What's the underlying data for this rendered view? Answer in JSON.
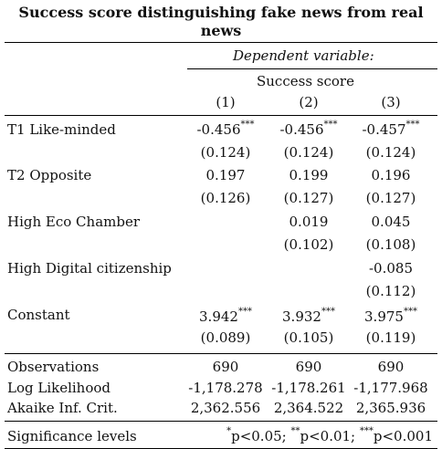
{
  "title": "Success score distinguishing fake news from real news",
  "header": {
    "dep_var_caption": "Dependent variable:",
    "dep_var_name": "Success score",
    "columns": [
      "(1)",
      "(2)",
      "(3)"
    ]
  },
  "rows": [
    {
      "label": "T1 Like-minded",
      "coef": [
        "-0.456",
        "-0.456",
        "-0.457"
      ],
      "stars": [
        "***",
        "***",
        "***"
      ],
      "se": [
        "(0.124)",
        "(0.124)",
        "(0.124)"
      ]
    },
    {
      "label": "T2 Opposite",
      "coef": [
        "0.197",
        "0.199",
        "0.196"
      ],
      "stars": [
        "",
        "",
        ""
      ],
      "se": [
        "(0.126)",
        "(0.127)",
        "(0.127)"
      ]
    },
    {
      "label": "High Eco Chamber",
      "coef": [
        "",
        "0.019",
        "0.045"
      ],
      "stars": [
        "",
        "",
        ""
      ],
      "se": [
        "",
        "(0.102)",
        "(0.108)"
      ]
    },
    {
      "label": "High Digital citizenship",
      "coef": [
        "",
        "",
        "-0.085"
      ],
      "stars": [
        "",
        "",
        ""
      ],
      "se": [
        "",
        "",
        "(0.112)"
      ]
    },
    {
      "label": "Constant",
      "coef": [
        "3.942",
        "3.932",
        "3.975"
      ],
      "stars": [
        "***",
        "***",
        "***"
      ],
      "se": [
        "(0.089)",
        "(0.105)",
        "(0.119)"
      ]
    }
  ],
  "stats": [
    {
      "label": "Observations",
      "values": [
        "690",
        "690",
        "690"
      ]
    },
    {
      "label": "Log Likelihood",
      "values": [
        "-1,178.278",
        "-1,178.261",
        "-1,177.968"
      ]
    },
    {
      "label": "Akaike Inf. Crit.",
      "values": [
        "2,362.556",
        "2,364.522",
        "2,365.936"
      ]
    }
  ],
  "significance": {
    "label": "Significance levels",
    "s1": "*",
    "t1": "p<0.05; ",
    "s2": "**",
    "t2": "p<0.01; ",
    "s3": "***",
    "t3": "p<0.001"
  }
}
